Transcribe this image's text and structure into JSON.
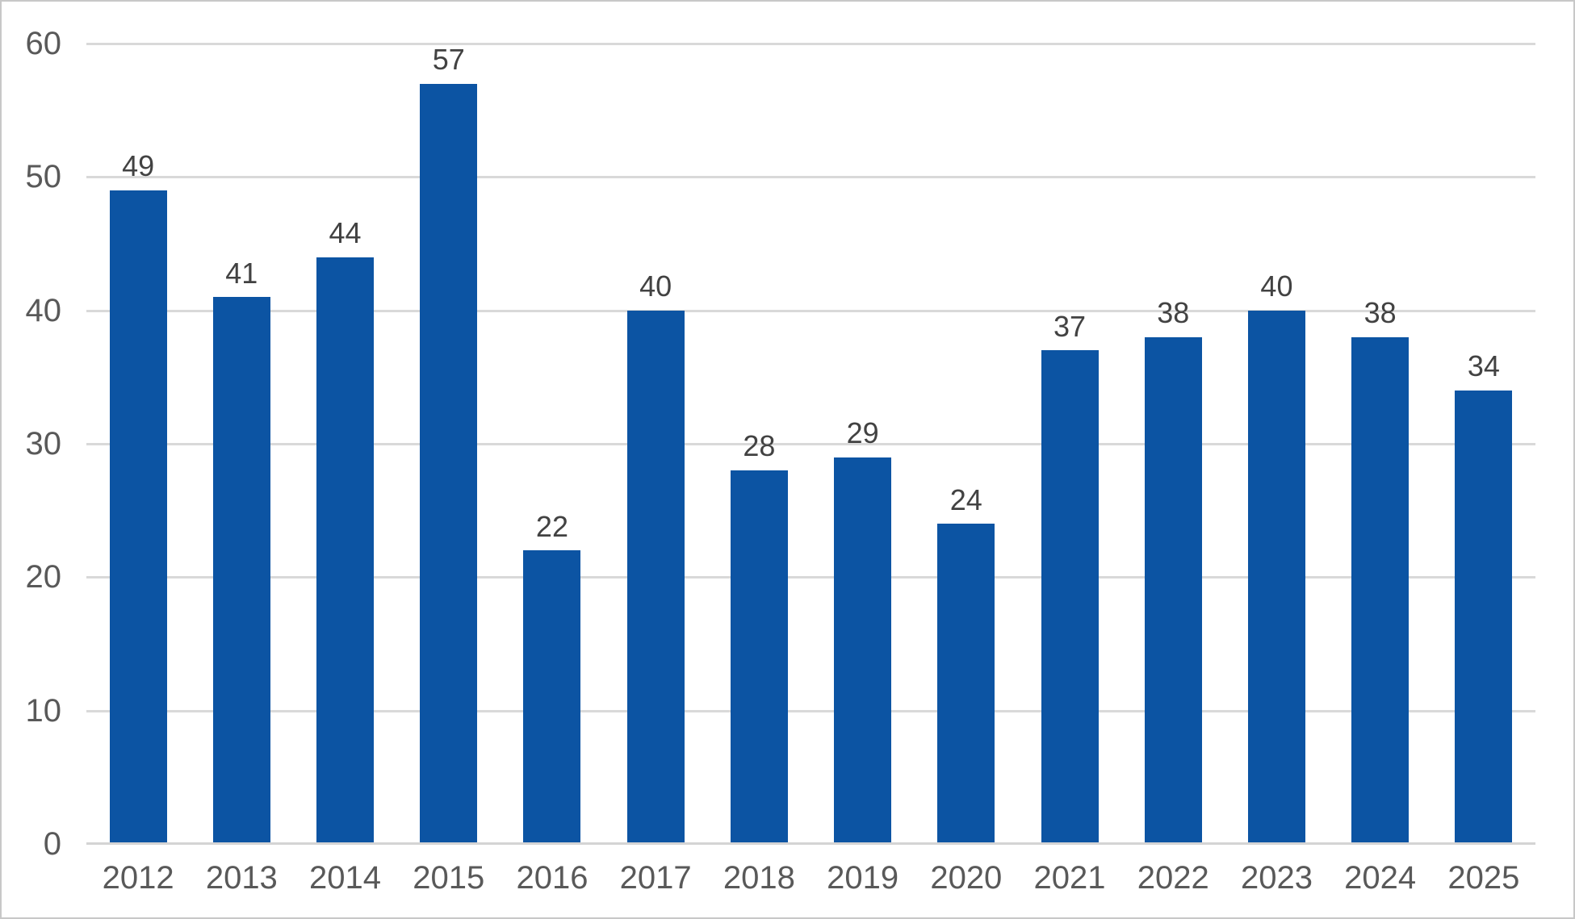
{
  "chart_data": {
    "type": "bar",
    "categories": [
      "2012",
      "2013",
      "2014",
      "2015",
      "2016",
      "2017",
      "2018",
      "2019",
      "2020",
      "2021",
      "2022",
      "2023",
      "2024",
      "2025"
    ],
    "values": [
      49,
      41,
      44,
      57,
      22,
      40,
      28,
      29,
      24,
      37,
      38,
      40,
      38,
      34
    ],
    "title": "",
    "xlabel": "",
    "ylabel": "",
    "ylim": [
      0,
      60
    ],
    "ytick_step": 10,
    "ytick_labels": [
      "0",
      "10",
      "20",
      "30",
      "40",
      "50",
      "60"
    ],
    "grid": true,
    "legend": false,
    "data_labels": true,
    "colors": {
      "bar": "#0c54a3",
      "gridline": "#d9d9d9",
      "axis_line": "#d4d4d4",
      "tick_label": "#595959",
      "data_label": "#424242",
      "frame_border": "#c8c8c8",
      "background": "#ffffff"
    }
  }
}
